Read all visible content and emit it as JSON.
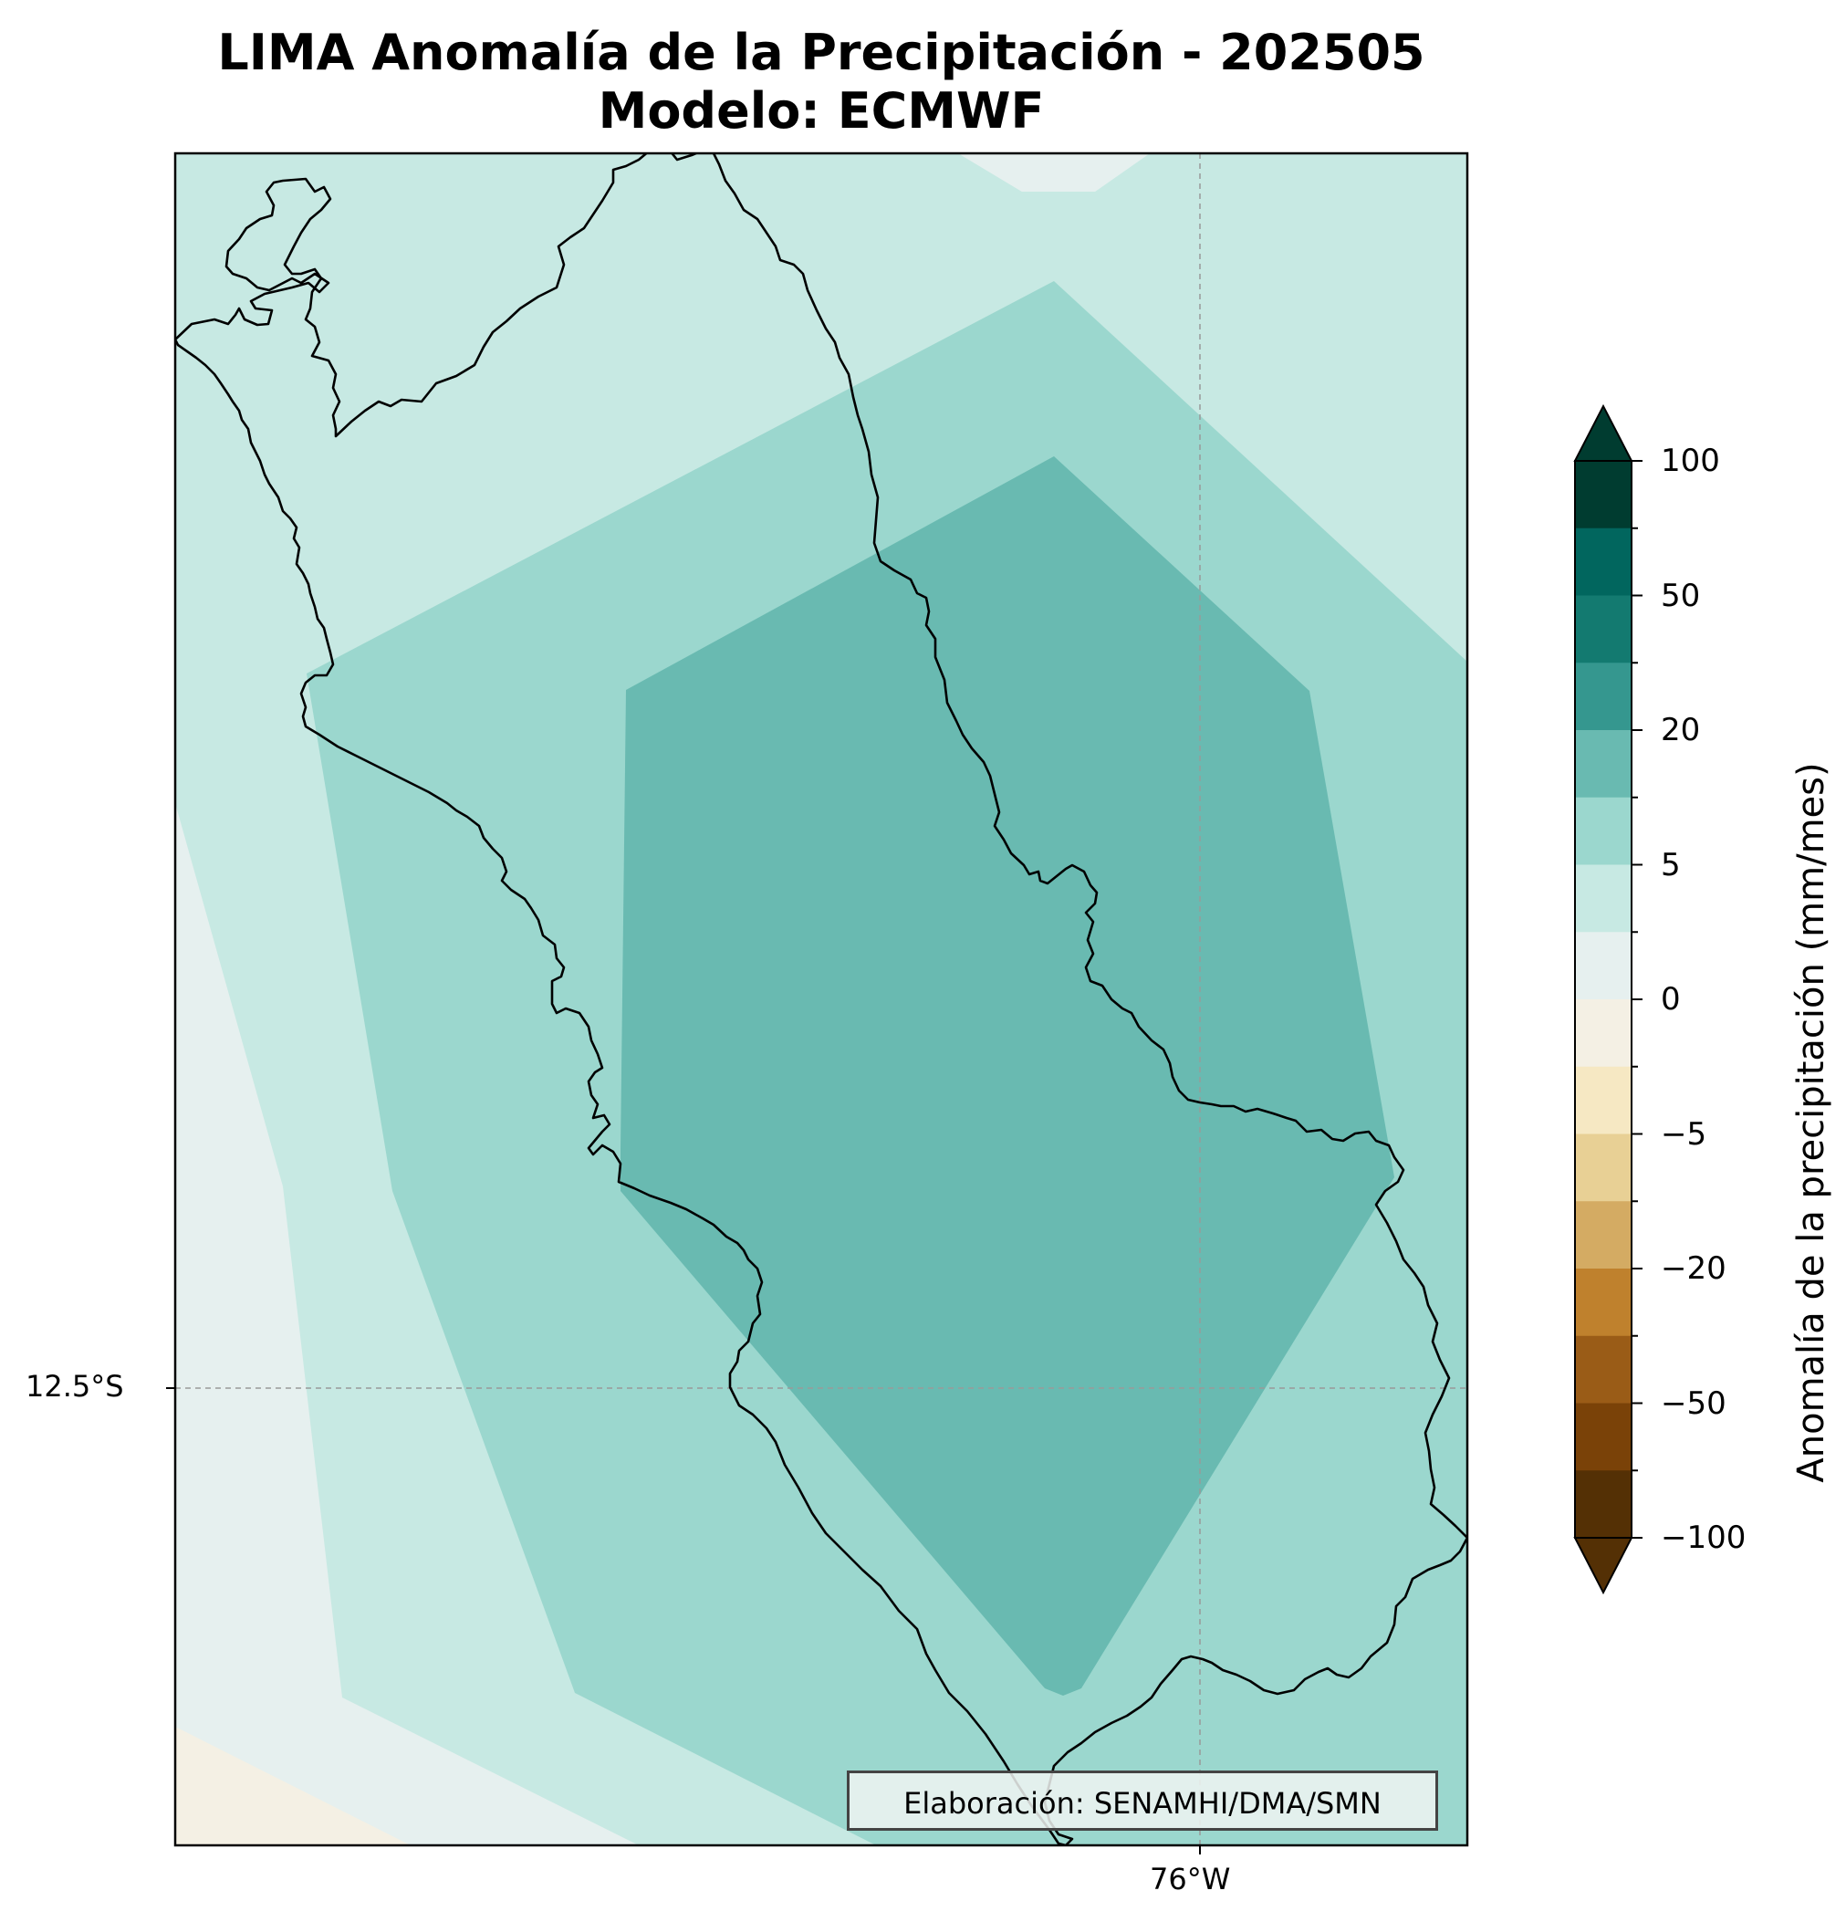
{
  "title_line1": "LIMA Anomalía de la Precipitación - 202505",
  "title_line2": "Modelo: ECMWF",
  "credit": "Elaboración: SENAMHI/DMA/SMN",
  "gridlines": {
    "lat_label": "12.5°S",
    "lon_label": "76°W"
  },
  "colorbar": {
    "label": "Anomalía de la precipitación (mm/mes)",
    "extend": "both",
    "tick_labels": [
      "100",
      "50",
      "20",
      "5",
      "0",
      "−5",
      "−20",
      "−50",
      "−100"
    ],
    "colors_top_to_bottom": [
      "#003c30",
      "#01665e",
      "#137a70",
      "#35978f",
      "#69bab1",
      "#9bd7ce",
      "#c7e9e3",
      "#e6f0ef",
      "#f4f0e4",
      "#f6e8c3",
      "#e8d095",
      "#d4ab63",
      "#bf812d",
      "#9a5c17",
      "#7a4208",
      "#543005"
    ],
    "extend_top_color": "#003c30",
    "extend_bottom_color": "#543005"
  },
  "map_colors": {
    "background": "#e6f0ef",
    "band_0_5": "#c7e9e3",
    "band_5_10": "#9bd7ce",
    "band_10_20": "#69bab1",
    "negative_corner": "#f4f0e4",
    "outline": "#000000"
  }
}
